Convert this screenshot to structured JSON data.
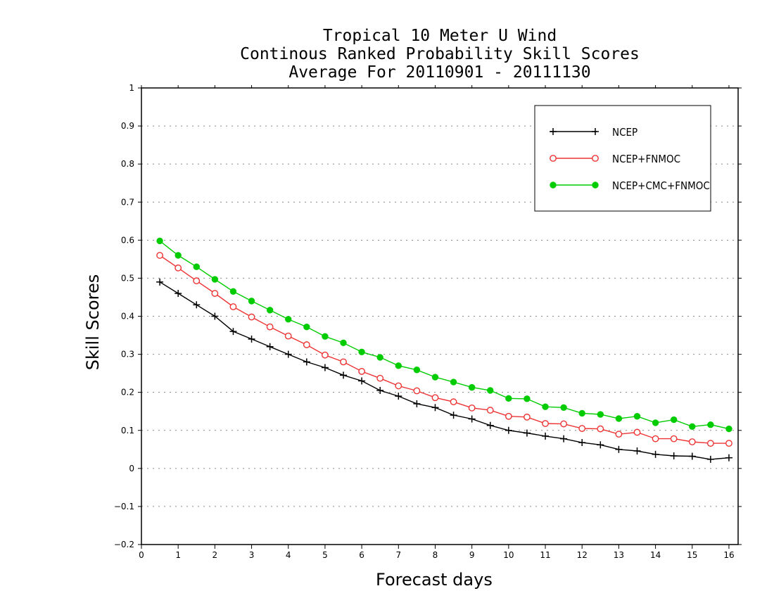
{
  "chart_data": {
    "type": "line",
    "title": [
      "Tropical 10 Meter U Wind",
      "Continous Ranked Probability Skill Scores",
      "Average For 20110901 - 20111130"
    ],
    "xlabel": "Forecast days",
    "ylabel": "Skill Scores",
    "xlim": [
      0,
      16.25
    ],
    "ylim": [
      -0.2,
      1.0
    ],
    "xticks": [
      "0",
      "1",
      "2",
      "3",
      "4",
      "5",
      "6",
      "7",
      "8",
      "9",
      "10",
      "11",
      "12",
      "13",
      "14",
      "15",
      "16"
    ],
    "yticks": [
      "−0.2",
      "−0.1",
      "0",
      "0.1",
      "0.2",
      "0.3",
      "0.4",
      "0.5",
      "0.6",
      "0.7",
      "0.8",
      "0.9",
      "1"
    ],
    "grid": "horizontal dotted",
    "legend_position": "top-right",
    "x": [
      0.5,
      1,
      1.5,
      2,
      2.5,
      3,
      3.5,
      4,
      4.5,
      5,
      5.5,
      6,
      6.5,
      7,
      7.5,
      8,
      8.5,
      9,
      9.5,
      10,
      10.5,
      11,
      11.5,
      12,
      12.5,
      13,
      13.5,
      14,
      14.5,
      15,
      15.5,
      16
    ],
    "series": [
      {
        "name": "NCEP",
        "color": "#000000",
        "marker": "plus",
        "values": [
          0.49,
          0.46,
          0.43,
          0.4,
          0.36,
          0.34,
          0.32,
          0.3,
          0.28,
          0.265,
          0.245,
          0.23,
          0.205,
          0.19,
          0.17,
          0.16,
          0.14,
          0.13,
          0.113,
          0.1,
          0.093,
          0.085,
          0.078,
          0.068,
          0.062,
          0.05,
          0.046,
          0.037,
          0.033,
          0.032,
          0.024,
          0.028
        ]
      },
      {
        "name": "NCEP+FNMOC",
        "color": "#ee3333",
        "marker": "open-circle",
        "values": [
          0.56,
          0.527,
          0.493,
          0.46,
          0.425,
          0.398,
          0.372,
          0.348,
          0.325,
          0.298,
          0.28,
          0.255,
          0.237,
          0.217,
          0.204,
          0.186,
          0.175,
          0.159,
          0.153,
          0.137,
          0.135,
          0.118,
          0.117,
          0.105,
          0.104,
          0.09,
          0.095,
          0.078,
          0.078,
          0.07,
          0.066,
          0.066
        ]
      },
      {
        "name": "NCEP+CMC+FNMOC",
        "color": "#00cc00",
        "marker": "filled-circle",
        "values": [
          0.598,
          0.56,
          0.53,
          0.497,
          0.465,
          0.44,
          0.416,
          0.392,
          0.372,
          0.347,
          0.33,
          0.306,
          0.292,
          0.27,
          0.259,
          0.24,
          0.227,
          0.213,
          0.205,
          0.184,
          0.183,
          0.162,
          0.16,
          0.145,
          0.142,
          0.131,
          0.137,
          0.12,
          0.128,
          0.11,
          0.115,
          0.104
        ]
      }
    ]
  }
}
